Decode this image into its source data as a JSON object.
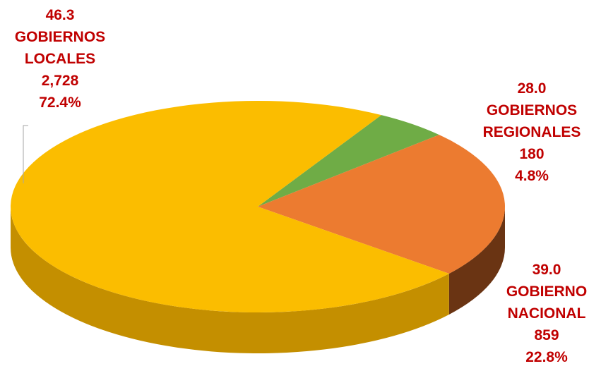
{
  "chart_data": {
    "type": "pie",
    "style": "3d",
    "slices": [
      {
        "category": "GOBIERNOS LOCALES",
        "avg": "46.3",
        "value": 2728,
        "value_label": "2,728",
        "percent": 72.4,
        "percent_label": "72.4%",
        "color": "#fbbd00",
        "side_color": "#c48f00"
      },
      {
        "category": "GOBIERNOS REGIONALES",
        "avg": "28.0",
        "value": 180,
        "value_label": "180",
        "percent": 4.8,
        "percent_label": "4.8%",
        "color": "#6fac46",
        "side_color": "#3f6a27"
      },
      {
        "category": "GOBIERNO NACIONAL",
        "avg": "39.0",
        "value": 859,
        "value_label": "859",
        "percent": 22.8,
        "percent_label": "22.8%",
        "color": "#ec7b30",
        "side_color": "#6a3413"
      }
    ],
    "label_color": "#c00000",
    "title": "",
    "legend": "none"
  }
}
